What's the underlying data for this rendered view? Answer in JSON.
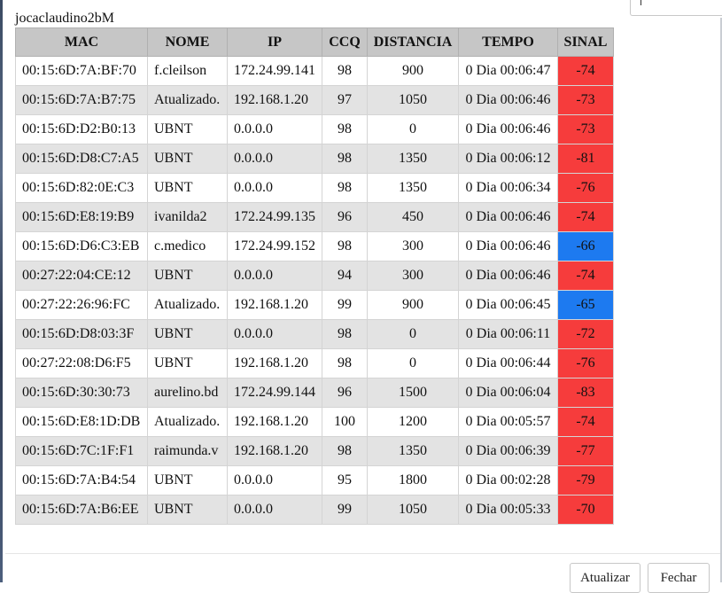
{
  "dialog": {
    "title": "jocaclaudino2bM"
  },
  "search": {
    "value": ""
  },
  "colors": {
    "signal_weak": "#f63c3c",
    "signal_good": "#1d7af0",
    "header_bg": "#c6c6c6",
    "row_alt_bg": "#e3e3e3"
  },
  "table": {
    "headers": [
      "MAC",
      "NOME",
      "IP",
      "CCQ",
      "DISTANCIA",
      "TEMPO",
      "SINAL"
    ],
    "rows": [
      {
        "mac": "00:15:6D:7A:BF:70",
        "nome": "f.cleilson",
        "ip": "172.24.99.141",
        "ccq": "98",
        "distancia": "900",
        "tempo": "0 Dia 00:06:47",
        "sinal": "-74",
        "level": "weak"
      },
      {
        "mac": "00:15:6D:7A:B7:75",
        "nome": "Atualizado.",
        "ip": "192.168.1.20",
        "ccq": "97",
        "distancia": "1050",
        "tempo": "0 Dia 00:06:46",
        "sinal": "-73",
        "level": "weak"
      },
      {
        "mac": "00:15:6D:D2:B0:13",
        "nome": "UBNT",
        "ip": "0.0.0.0",
        "ccq": "98",
        "distancia": "0",
        "tempo": "0 Dia 00:06:46",
        "sinal": "-73",
        "level": "weak"
      },
      {
        "mac": "00:15:6D:D8:C7:A5",
        "nome": "UBNT",
        "ip": "0.0.0.0",
        "ccq": "98",
        "distancia": "1350",
        "tempo": "0 Dia 00:06:12",
        "sinal": "-81",
        "level": "weak"
      },
      {
        "mac": "00:15:6D:82:0E:C3",
        "nome": "UBNT",
        "ip": "0.0.0.0",
        "ccq": "98",
        "distancia": "1350",
        "tempo": "0 Dia 00:06:34",
        "sinal": "-76",
        "level": "weak"
      },
      {
        "mac": "00:15:6D:E8:19:B9",
        "nome": "ivanilda2",
        "ip": "172.24.99.135",
        "ccq": "96",
        "distancia": "450",
        "tempo": "0 Dia 00:06:46",
        "sinal": "-74",
        "level": "weak"
      },
      {
        "mac": "00:15:6D:D6:C3:EB",
        "nome": "c.medico",
        "ip": "172.24.99.152",
        "ccq": "98",
        "distancia": "300",
        "tempo": "0 Dia 00:06:46",
        "sinal": "-66",
        "level": "good"
      },
      {
        "mac": "00:27:22:04:CE:12",
        "nome": "UBNT",
        "ip": "0.0.0.0",
        "ccq": "94",
        "distancia": "300",
        "tempo": "0 Dia 00:06:46",
        "sinal": "-74",
        "level": "weak"
      },
      {
        "mac": "00:27:22:26:96:FC",
        "nome": "Atualizado.",
        "ip": "192.168.1.20",
        "ccq": "99",
        "distancia": "900",
        "tempo": "0 Dia 00:06:45",
        "sinal": "-65",
        "level": "good"
      },
      {
        "mac": "00:15:6D:D8:03:3F",
        "nome": "UBNT",
        "ip": "0.0.0.0",
        "ccq": "98",
        "distancia": "0",
        "tempo": "0 Dia 00:06:11",
        "sinal": "-72",
        "level": "weak"
      },
      {
        "mac": "00:27:22:08:D6:F5",
        "nome": "UBNT",
        "ip": "192.168.1.20",
        "ccq": "98",
        "distancia": "0",
        "tempo": "0 Dia 00:06:44",
        "sinal": "-76",
        "level": "weak"
      },
      {
        "mac": "00:15:6D:30:30:73",
        "nome": "aurelino.bd",
        "ip": "172.24.99.144",
        "ccq": "96",
        "distancia": "1500",
        "tempo": "0 Dia 00:06:04",
        "sinal": "-83",
        "level": "weak"
      },
      {
        "mac": "00:15:6D:E8:1D:DB",
        "nome": "Atualizado.",
        "ip": "192.168.1.20",
        "ccq": "100",
        "distancia": "1200",
        "tempo": "0 Dia 00:05:57",
        "sinal": "-74",
        "level": "weak"
      },
      {
        "mac": "00:15:6D:7C:1F:F1",
        "nome": "raimunda.v",
        "ip": "192.168.1.20",
        "ccq": "98",
        "distancia": "1350",
        "tempo": "0 Dia 00:06:39",
        "sinal": "-77",
        "level": "weak"
      },
      {
        "mac": "00:15:6D:7A:B4:54",
        "nome": "UBNT",
        "ip": "0.0.0.0",
        "ccq": "95",
        "distancia": "1800",
        "tempo": "0 Dia 00:02:28",
        "sinal": "-79",
        "level": "weak"
      },
      {
        "mac": "00:15:6D:7A:B6:EE",
        "nome": "UBNT",
        "ip": "0.0.0.0",
        "ccq": "99",
        "distancia": "1050",
        "tempo": "0 Dia 00:05:33",
        "sinal": "-70",
        "level": "weak"
      }
    ]
  },
  "footer": {
    "refresh_label": "Atualizar",
    "close_label": "Fechar"
  }
}
